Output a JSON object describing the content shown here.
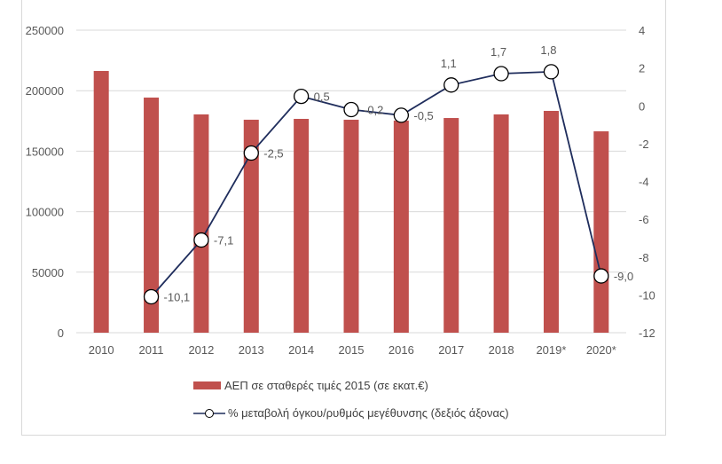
{
  "chart_data": {
    "type": "bar+line",
    "categories": [
      "2010",
      "2011",
      "2012",
      "2013",
      "2014",
      "2015",
      "2016",
      "2017",
      "2018",
      "2019*",
      "2020*"
    ],
    "series": [
      {
        "name": "ΑΕΠ σε σταθερές τιμές 2015 (σε εκατ.€)",
        "type": "bar",
        "axis": "left",
        "color": "#c0504d",
        "values": [
          216300,
          194300,
          180400,
          176000,
          176700,
          176000,
          175300,
          177400,
          180400,
          183300,
          166400
        ]
      },
      {
        "name": "% μεταβολή όγκου/ρυθμός μεγέθυνσης (δεξιός άξονας)",
        "type": "line",
        "axis": "right",
        "color": "#1f2d5c",
        "values": [
          null,
          -10.1,
          -7.1,
          -2.5,
          0.5,
          -0.2,
          -0.5,
          1.1,
          1.7,
          1.8,
          -9.0
        ],
        "labels": [
          null,
          "-10,1",
          "-7,1",
          "-2,5",
          "0,5",
          "-0,2",
          "-0,5",
          "1,1",
          "1,7",
          "1,8",
          "-9,0"
        ]
      }
    ],
    "left_axis": {
      "ylim": [
        0,
        250000
      ],
      "ticks": [
        "0",
        "50000",
        "100000",
        "150000",
        "200000",
        "250000"
      ]
    },
    "right_axis": {
      "ylim": [
        -12,
        4
      ],
      "ticks": [
        "-12",
        "-10",
        "-8",
        "-6",
        "-4",
        "-2",
        "0",
        "2",
        "4"
      ]
    },
    "grid": true,
    "legend": "bottom"
  }
}
